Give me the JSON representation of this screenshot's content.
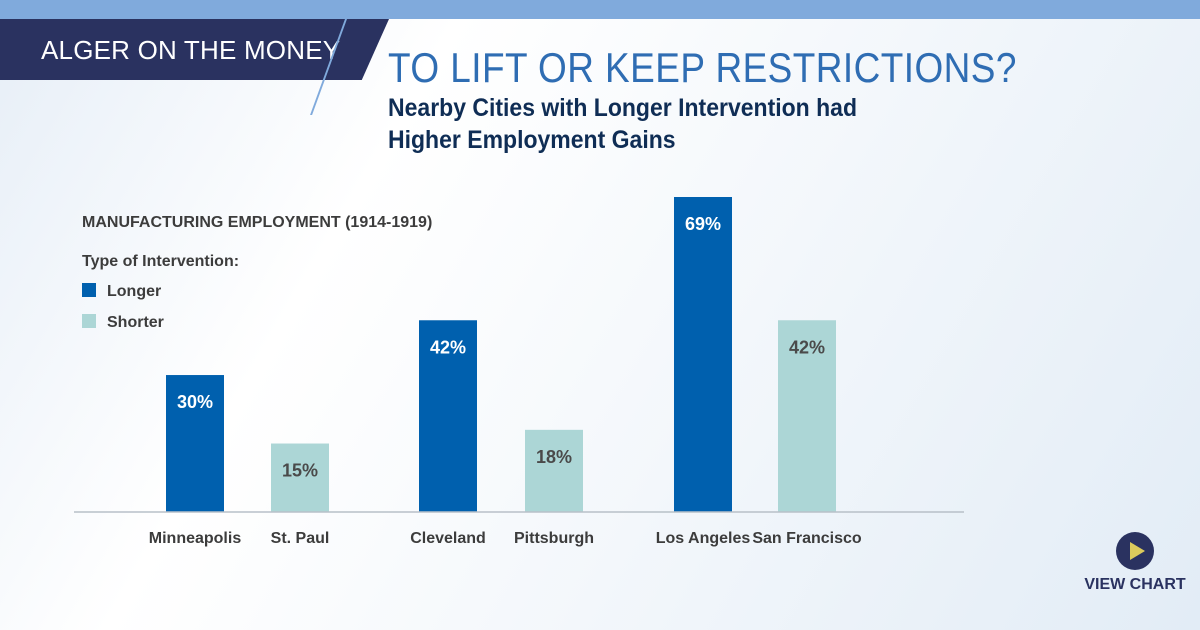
{
  "header": {
    "brand": "ALGER ON THE MONEY",
    "title": "TO LIFT OR KEEP RESTRICTIONS?",
    "subtitle_line1": "Nearby Cities with Longer Intervention had",
    "subtitle_line2": "Higher Employment Gains"
  },
  "cta": {
    "label": "VIEW CHART",
    "icon": "play-icon"
  },
  "colors": {
    "longer": "#0060ae",
    "shorter": "#acd6d6",
    "navy": "#2a3260"
  },
  "chart_data": {
    "type": "bar",
    "title": "MANUFACTURING EMPLOYMENT (1914-1919)",
    "legend_title": "Type of Intervention:",
    "legend": [
      {
        "name": "Longer",
        "color": "#0060ae"
      },
      {
        "name": "Shorter",
        "color": "#acd6d6"
      }
    ],
    "legend_placement": "top-left",
    "categories": [
      "Minneapolis",
      "St. Paul",
      "Cleveland",
      "Pittsburgh",
      "Los Angeles",
      "San Francisco"
    ],
    "values": [
      30,
      15,
      42,
      18,
      69,
      42
    ],
    "types": [
      "Longer",
      "Shorter",
      "Longer",
      "Shorter",
      "Longer",
      "Shorter"
    ],
    "labels": [
      "30%",
      "15%",
      "42%",
      "18%",
      "69%",
      "42%"
    ],
    "unit": "%",
    "ylim": [
      0,
      69
    ],
    "grid": false
  }
}
